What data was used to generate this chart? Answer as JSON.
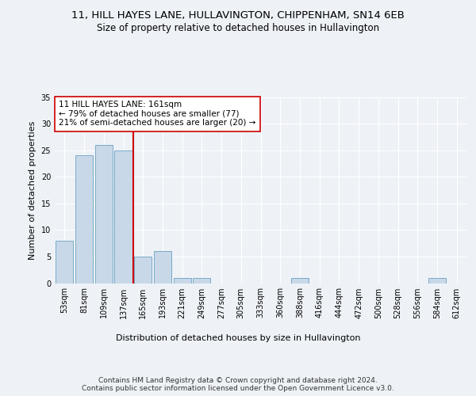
{
  "title_line1": "11, HILL HAYES LANE, HULLAVINGTON, CHIPPENHAM, SN14 6EB",
  "title_line2": "Size of property relative to detached houses in Hullavington",
  "xlabel": "Distribution of detached houses by size in Hullavington",
  "ylabel": "Number of detached properties",
  "footer": "Contains HM Land Registry data © Crown copyright and database right 2024.\nContains public sector information licensed under the Open Government Licence v3.0.",
  "categories": [
    "53sqm",
    "81sqm",
    "109sqm",
    "137sqm",
    "165sqm",
    "193sqm",
    "221sqm",
    "249sqm",
    "277sqm",
    "305sqm",
    "333sqm",
    "360sqm",
    "388sqm",
    "416sqm",
    "444sqm",
    "472sqm",
    "500sqm",
    "528sqm",
    "556sqm",
    "584sqm",
    "612sqm"
  ],
  "values": [
    8,
    24,
    26,
    25,
    5,
    6,
    1,
    1,
    0,
    0,
    0,
    0,
    1,
    0,
    0,
    0,
    0,
    0,
    0,
    1,
    0
  ],
  "bar_color": "#c8d8e8",
  "bar_edge_color": "#7aaac8",
  "subject_line_index": 4,
  "subject_line_color": "#cc0000",
  "annotation_text": "11 HILL HAYES LANE: 161sqm\n← 79% of detached houses are smaller (77)\n21% of semi-detached houses are larger (20) →",
  "annotation_box_color": "#ffffff",
  "annotation_box_edge_color": "#cc0000",
  "ylim": [
    0,
    35
  ],
  "yticks": [
    0,
    5,
    10,
    15,
    20,
    25,
    30,
    35
  ],
  "bg_color": "#eef2f7",
  "plot_bg_color": "#eef2f7",
  "grid_color": "#ffffff",
  "title_fontsize": 9.5,
  "subtitle_fontsize": 8.5,
  "ylabel_fontsize": 8,
  "xlabel_fontsize": 8,
  "tick_fontsize": 7,
  "annotation_fontsize": 7.5,
  "footer_fontsize": 6.5
}
